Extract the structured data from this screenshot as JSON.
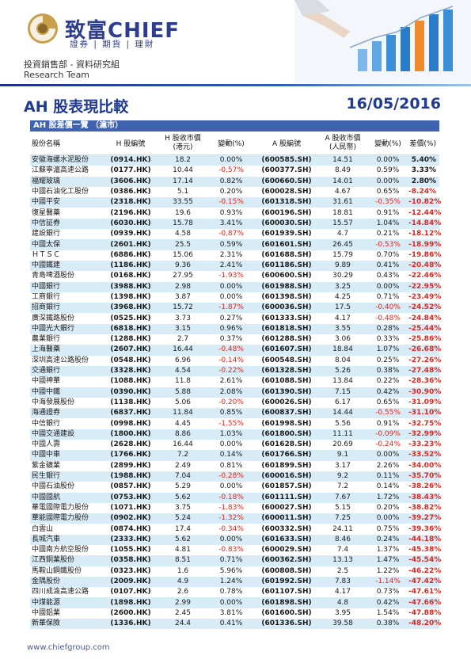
{
  "header": {
    "brand_cn": "致富",
    "brand_en": "CHIEF",
    "tagline": "證券 | 期貨 | 理財",
    "dept": "投資銷售部 - 資料研究組",
    "team": "Research Team"
  },
  "report": {
    "title": "AH 股表現比較",
    "date": "16/05/2016"
  },
  "table": {
    "section_label": "AH 股差價一覽 （滬市）",
    "headers": {
      "name": "股份名稱",
      "h_code": "H 股編號",
      "h_close": "H 股收市價\n(港元)",
      "h_change": "變動(%)",
      "a_code": "A 股編號",
      "a_close": "A 股收市價\n(人民幣)",
      "a_change": "變動(%)",
      "spread": "差價(%)"
    },
    "rows": [
      {
        "name": "安徽海螺水泥股份",
        "h_code": "(0914.HK)",
        "h_close": "18.2",
        "h_change": "0.00%",
        "a_code": "(600585.SH)",
        "a_close": "14.51",
        "a_change": "0.00%",
        "spread": "5.40%"
      },
      {
        "name": "江蘇寧滬高速公路",
        "h_code": "(0177.HK)",
        "h_close": "10.44",
        "h_change": "-0.57%",
        "a_code": "(600377.SH)",
        "a_close": "8.49",
        "a_change": "0.59%",
        "spread": "3.33%"
      },
      {
        "name": "福耀玻璃",
        "h_code": "(3606.HK)",
        "h_close": "17.14",
        "h_change": "0.82%",
        "a_code": "(600660.SH)",
        "a_close": "14.01",
        "a_change": "0.00%",
        "spread": "2.80%"
      },
      {
        "name": "中國石油化工股份",
        "h_code": "(0386.HK)",
        "h_close": "5.1",
        "h_change": "0.20%",
        "a_code": "(600028.SH)",
        "a_close": "4.67",
        "a_change": "0.65%",
        "spread": "-8.24%"
      },
      {
        "name": "中國平安",
        "h_code": "(2318.HK)",
        "h_close": "33.55",
        "h_change": "-0.15%",
        "a_code": "(601318.SH)",
        "a_close": "31.61",
        "a_change": "-0.35%",
        "spread": "-10.82%"
      },
      {
        "name": "復星醫藥",
        "h_code": "(2196.HK)",
        "h_close": "19.6",
        "h_change": "0.93%",
        "a_code": "(600196.SH)",
        "a_close": "18.81",
        "a_change": "0.91%",
        "spread": "-12.44%"
      },
      {
        "name": "中信証券",
        "h_code": "(6030.HK)",
        "h_close": "15.78",
        "h_change": "3.41%",
        "a_code": "(600030.SH)",
        "a_close": "15.57",
        "a_change": "1.04%",
        "spread": "-14.84%"
      },
      {
        "name": "建設銀行",
        "h_code": "(0939.HK)",
        "h_close": "4.58",
        "h_change": "-0.87%",
        "a_code": "(601939.SH)",
        "a_close": "4.7",
        "a_change": "0.21%",
        "spread": "-18.12%"
      },
      {
        "name": "中國太保",
        "h_code": "(2601.HK)",
        "h_close": "25.5",
        "h_change": "0.59%",
        "a_code": "(601601.SH)",
        "a_close": "26.45",
        "a_change": "-0.53%",
        "spread": "-18.99%"
      },
      {
        "name": "ＨＴＳＣ",
        "h_code": "(6886.HK)",
        "h_close": "15.06",
        "h_change": "2.31%",
        "a_code": "(601688.SH)",
        "a_close": "15.79",
        "a_change": "0.70%",
        "spread": "-19.86%"
      },
      {
        "name": "中國鐵建",
        "h_code": "(1186.HK)",
        "h_close": "9.36",
        "h_change": "2.41%",
        "a_code": "(601186.SH)",
        "a_close": "9.89",
        "a_change": "0.41%",
        "spread": "-20.48%"
      },
      {
        "name": "青島啤酒股份",
        "h_code": "(0168.HK)",
        "h_close": "27.95",
        "h_change": "-1.93%",
        "a_code": "(600600.SH)",
        "a_close": "30.29",
        "a_change": "0.43%",
        "spread": "-22.46%"
      },
      {
        "name": "中國銀行",
        "h_code": "(3988.HK)",
        "h_close": "2.98",
        "h_change": "0.00%",
        "a_code": "(601988.SH)",
        "a_close": "3.25",
        "a_change": "0.00%",
        "spread": "-22.95%"
      },
      {
        "name": "工商銀行",
        "h_code": "(1398.HK)",
        "h_close": "3.87",
        "h_change": "0.00%",
        "a_code": "(601398.SH)",
        "a_close": "4.25",
        "a_change": "0.71%",
        "spread": "-23.49%"
      },
      {
        "name": "招商銀行",
        "h_code": "(3968.HK)",
        "h_close": "15.72",
        "h_change": "-1.87%",
        "a_code": "(600036.SH)",
        "a_close": "17.5",
        "a_change": "-0.40%",
        "spread": "-24.52%"
      },
      {
        "name": "廣深鐵路股份",
        "h_code": "(0525.HK)",
        "h_close": "3.73",
        "h_change": "0.27%",
        "a_code": "(601333.SH)",
        "a_close": "4.17",
        "a_change": "-0.48%",
        "spread": "-24.84%"
      },
      {
        "name": "中國光大銀行",
        "h_code": "(6818.HK)",
        "h_close": "3.15",
        "h_change": "0.96%",
        "a_code": "(601818.SH)",
        "a_close": "3.55",
        "a_change": "0.28%",
        "spread": "-25.44%"
      },
      {
        "name": "農業銀行",
        "h_code": "(1288.HK)",
        "h_close": "2.7",
        "h_change": "0.37%",
        "a_code": "(601288.SH)",
        "a_close": "3.06",
        "a_change": "0.33%",
        "spread": "-25.86%"
      },
      {
        "name": "上海醫藥",
        "h_code": "(2607.HK)",
        "h_close": "16.44",
        "h_change": "-0.48%",
        "a_code": "(601607.SH)",
        "a_close": "18.84",
        "a_change": "1.07%",
        "spread": "-26.68%"
      },
      {
        "name": "深圳高速公路股份",
        "h_code": "(0548.HK)",
        "h_close": "6.96",
        "h_change": "-0.14%",
        "a_code": "(600548.SH)",
        "a_close": "8.04",
        "a_change": "0.25%",
        "spread": "-27.26%"
      },
      {
        "name": "交通銀行",
        "h_code": "(3328.HK)",
        "h_close": "4.54",
        "h_change": "-0.22%",
        "a_code": "(601328.SH)",
        "a_close": "5.26",
        "a_change": "0.38%",
        "spread": "-27.48%"
      },
      {
        "name": "中國神華",
        "h_code": "(1088.HK)",
        "h_close": "11.8",
        "h_change": "2.61%",
        "a_code": "(601088.SH)",
        "a_close": "13.84",
        "a_change": "0.22%",
        "spread": "-28.36%"
      },
      {
        "name": "中國中鐵",
        "h_code": "(0390.HK)",
        "h_close": "5.88",
        "h_change": "2.08%",
        "a_code": "(601390.SH)",
        "a_close": "7.15",
        "a_change": "0.42%",
        "spread": "-30.90%"
      },
      {
        "name": "中海發展股份",
        "h_code": "(1138.HK)",
        "h_close": "5.06",
        "h_change": "-0.20%",
        "a_code": "(600026.SH)",
        "a_close": "6.17",
        "a_change": "0.65%",
        "spread": "-31.09%"
      },
      {
        "name": "海通證券",
        "h_code": "(6837.HK)",
        "h_close": "11.84",
        "h_change": "0.85%",
        "a_code": "(600837.SH)",
        "a_close": "14.44",
        "a_change": "-0.55%",
        "spread": "-31.10%"
      },
      {
        "name": "中信銀行",
        "h_code": "(0998.HK)",
        "h_close": "4.45",
        "h_change": "-1.55%",
        "a_code": "(601998.SH)",
        "a_close": "5.56",
        "a_change": "0.91%",
        "spread": "-32.75%"
      },
      {
        "name": "中國交通建設",
        "h_code": "(1800.HK)",
        "h_close": "8.86",
        "h_change": "1.03%",
        "a_code": "(601800.SH)",
        "a_close": "11.11",
        "a_change": "-0.09%",
        "spread": "-32.99%"
      },
      {
        "name": "中國人壽",
        "h_code": "(2628.HK)",
        "h_close": "16.44",
        "h_change": "0.00%",
        "a_code": "(601628.SH)",
        "a_close": "20.69",
        "a_change": "-0.24%",
        "spread": "-33.23%"
      },
      {
        "name": "中國中車",
        "h_code": "(1766.HK)",
        "h_close": "7.2",
        "h_change": "0.14%",
        "a_code": "(601766.SH)",
        "a_close": "9.1",
        "a_change": "0.00%",
        "spread": "-33.52%"
      },
      {
        "name": "紫金礦業",
        "h_code": "(2899.HK)",
        "h_close": "2.49",
        "h_change": "0.81%",
        "a_code": "(601899.SH)",
        "a_close": "3.17",
        "a_change": "2.26%",
        "spread": "-34.00%"
      },
      {
        "name": "民生銀行",
        "h_code": "(1988.HK)",
        "h_close": "7.04",
        "h_change": "-0.28%",
        "a_code": "(600016.SH)",
        "a_close": "9.2",
        "a_change": "0.11%",
        "spread": "-35.70%"
      },
      {
        "name": "中國石油股份",
        "h_code": "(0857.HK)",
        "h_close": "5.29",
        "h_change": "0.00%",
        "a_code": "(601857.SH)",
        "a_close": "7.2",
        "a_change": "0.14%",
        "spread": "-38.26%"
      },
      {
        "name": "中國國航",
        "h_code": "(0753.HK)",
        "h_close": "5.62",
        "h_change": "-0.18%",
        "a_code": "(601111.SH)",
        "a_close": "7.67",
        "a_change": "1.72%",
        "spread": "-38.43%"
      },
      {
        "name": "華電國際電力股份",
        "h_code": "(1071.HK)",
        "h_close": "3.75",
        "h_change": "-1.83%",
        "a_code": "(600027.SH)",
        "a_close": "5.15",
        "a_change": "0.20%",
        "spread": "-38.82%"
      },
      {
        "name": "華能國際電力股份",
        "h_code": "(0902.HK)",
        "h_close": "5.24",
        "h_change": "-1.32%",
        "a_code": "(600011.SH)",
        "a_close": "7.25",
        "a_change": "0.00%",
        "spread": "-39.27%"
      },
      {
        "name": "白雲山",
        "h_code": "(0874.HK)",
        "h_close": "17.4",
        "h_change": "-0.34%",
        "a_code": "(600332.SH)",
        "a_close": "24.11",
        "a_change": "0.75%",
        "spread": "-39.36%"
      },
      {
        "name": "長城汽車",
        "h_code": "(2333.HK)",
        "h_close": "5.62",
        "h_change": "0.00%",
        "a_code": "(601633.SH)",
        "a_close": "8.46",
        "a_change": "0.24%",
        "spread": "-44.18%"
      },
      {
        "name": "中國南方航空股份",
        "h_code": "(1055.HK)",
        "h_close": "4.81",
        "h_change": "-0.83%",
        "a_code": "(600029.SH)",
        "a_close": "7.4",
        "a_change": "1.37%",
        "spread": "-45.38%"
      },
      {
        "name": "江西銅業股份",
        "h_code": "(0358.HK)",
        "h_close": "8.51",
        "h_change": "0.71%",
        "a_code": "(600362.SH)",
        "a_close": "13.13",
        "a_change": "1.47%",
        "spread": "-45.54%"
      },
      {
        "name": "馬鞍山鋼鐵股份",
        "h_code": "(0323.HK)",
        "h_close": "1.6",
        "h_change": "5.96%",
        "a_code": "(600808.SH)",
        "a_close": "2.5",
        "a_change": "1.22%",
        "spread": "-46.22%"
      },
      {
        "name": "金隅股份",
        "h_code": "(2009.HK)",
        "h_close": "4.9",
        "h_change": "1.24%",
        "a_code": "(601992.SH)",
        "a_close": "7.83",
        "a_change": "-1.14%",
        "spread": "-47.42%"
      },
      {
        "name": "四川成渝高速公路",
        "h_code": "(0107.HK)",
        "h_close": "2.6",
        "h_change": "0.78%",
        "a_code": "(601107.SH)",
        "a_close": "4.17",
        "a_change": "0.73%",
        "spread": "-47.61%"
      },
      {
        "name": "中煤能源",
        "h_code": "(1898.HK)",
        "h_close": "2.99",
        "h_change": "0.00%",
        "a_code": "(601898.SH)",
        "a_close": "4.8",
        "a_change": "0.42%",
        "spread": "-47.66%"
      },
      {
        "name": "中國鋁業",
        "h_code": "(2600.HK)",
        "h_close": "2.45",
        "h_change": "3.81%",
        "a_code": "(601600.SH)",
        "a_close": "3.95",
        "a_change": "1.54%",
        "spread": "-47.88%"
      },
      {
        "name": "新華保險",
        "h_code": "(1336.HK)",
        "h_close": "24.4",
        "h_change": "0.41%",
        "a_code": "(601336.SH)",
        "a_close": "39.58",
        "a_change": "0.38%",
        "spread": "-48.20%"
      }
    ]
  },
  "footer": {
    "url": "www.chiefgroup.com"
  },
  "colors": {
    "brand": "#2f3d8e",
    "title": "#1f3a8f",
    "section_bar": "#3f63b0",
    "alt_row": "#d8ecf7",
    "negative": "#e0261f"
  }
}
